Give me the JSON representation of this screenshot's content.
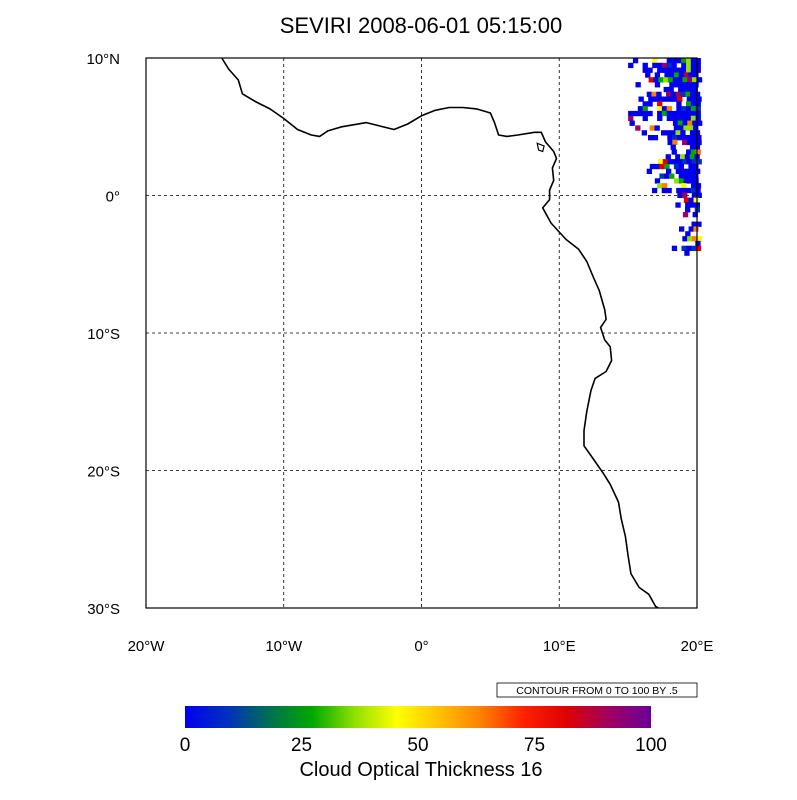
{
  "title": "SEVIRI 2008-06-01 05:15:00",
  "map": {
    "projection": "cylindrical equidistant",
    "lon_range": [
      -20,
      20
    ],
    "lat_range": [
      -30,
      10
    ],
    "grid_lines": "dashed",
    "lat_ticks": [
      {
        "value": 10,
        "label": "10°N"
      },
      {
        "value": 0,
        "label": "0°"
      },
      {
        "value": -10,
        "label": "10°S"
      },
      {
        "value": -20,
        "label": "20°S"
      },
      {
        "value": -30,
        "label": "30°S"
      }
    ],
    "lon_ticks": [
      {
        "value": -20,
        "label": "20°W"
      },
      {
        "value": -10,
        "label": "10°W"
      },
      {
        "value": 0,
        "label": "0°"
      },
      {
        "value": 10,
        "label": "10°E"
      },
      {
        "value": 20,
        "label": "20°E"
      }
    ],
    "coastline_color": "#000000",
    "cloud_region": "north-east corner, approx. 15°E–20°E, 4°S–10°N"
  },
  "contour_info": "CONTOUR FROM 0 TO 100 BY .5",
  "colorbar": {
    "label": "Cloud Optical Thickness 16",
    "min": 0,
    "max": 100,
    "tick_labels": [
      "0",
      "25",
      "50",
      "75",
      "100"
    ],
    "colors": [
      "#0000ee",
      "#0030c0",
      "#007050",
      "#00a800",
      "#90e000",
      "#ffff00",
      "#ffc000",
      "#ff8000",
      "#ff2000",
      "#e00000",
      "#a00060",
      "#6a0098"
    ]
  }
}
